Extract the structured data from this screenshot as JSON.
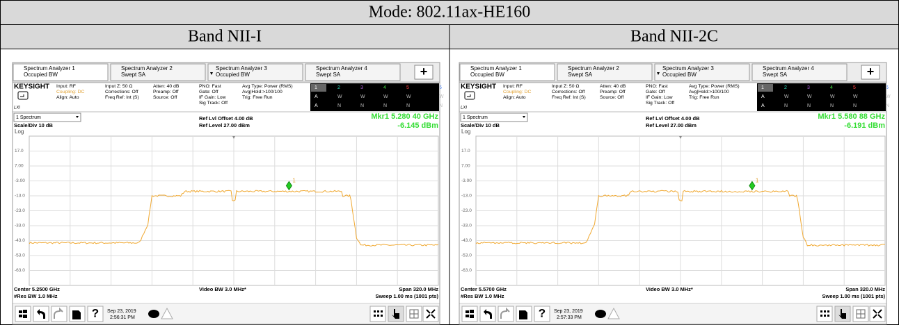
{
  "table": {
    "title": "Mode: 802.11ax-HE160",
    "headers": [
      "Band NII-I",
      "Band NII-2C"
    ],
    "panels": [
      {
        "tabs": [
          {
            "name": "Spectrum Analyzer 1",
            "mode": "Occupied BW"
          },
          {
            "name": "Spectrum Analyzer 2",
            "mode": "Swept SA"
          },
          {
            "name": "Spectrum Analyzer 3",
            "mode": "Occupied BW"
          },
          {
            "name": "Spectrum Analyzer 4",
            "mode": "Swept SA"
          }
        ],
        "plus": "+",
        "logo": "KEYSIGHT",
        "lxi": "LXI",
        "settings": [
          [
            "Input: RF",
            "Coupling: DC",
            "Align: Auto"
          ],
          [
            "Input Z: 50 Ω",
            "Corrections: Off",
            "Freq Ref: Int (S)"
          ],
          [
            "Atten: 40 dB",
            "Preamp: Off",
            "Source: Off"
          ],
          [
            "PNO: Fast",
            "Gate: Off",
            "IF Gain: Low",
            "Sig Track: Off"
          ],
          [
            "Avg Type: Power (RMS)",
            "Avg|Hold:>100/100",
            "Trig: Free Run"
          ]
        ],
        "trace_table": [
          [
            "1",
            "2",
            "3",
            "4",
            "5",
            "6"
          ],
          [
            "A",
            "W",
            "W",
            "W",
            "W",
            "W"
          ],
          [
            "A",
            "N",
            "N",
            "N",
            "N",
            "N"
          ]
        ],
        "view": "1 Spectrum",
        "scale": "Scale/Div 10 dB",
        "log": "Log",
        "ref_offset": "Ref Lvl Offset 4.00 dB",
        "ref_level": "Ref Level 27.00 dBm",
        "marker_freq": "Mkr1  5.280 40 GHz",
        "marker_level": "-6.145 dBm",
        "marker_label": "1",
        "y_labels": [
          "17.0",
          "7.00",
          "-3.00",
          "-13.0",
          "-23.0",
          "-33.0",
          "-43.0",
          "-53.0",
          "-63.0"
        ],
        "center": "Center 5.2500 GHz",
        "res_bw": "#Res BW 1.0 MHz",
        "video_bw": "Video BW 3.0 MHz*",
        "span": "Span 320.0 MHz",
        "sweep": "Sweep 1.00 ms (1001 pts)",
        "help": "?",
        "date": "Sep 23, 2019",
        "time": "2:56:31 PM"
      },
      {
        "tabs": [
          {
            "name": "Spectrum Analyzer 1",
            "mode": "Occupied BW"
          },
          {
            "name": "Spectrum Analyzer 2",
            "mode": "Swept SA"
          },
          {
            "name": "Spectrum Analyzer 3",
            "mode": "Occupied BW"
          },
          {
            "name": "Spectrum Analyzer 4",
            "mode": "Swept SA"
          }
        ],
        "plus": "+",
        "logo": "KEYSIGHT",
        "lxi": "LXI",
        "settings": [
          [
            "Input: RF",
            "Coupling: DC",
            "Align: Auto"
          ],
          [
            "Input Z: 50 Ω",
            "Corrections: Off",
            "Freq Ref: Int (S)"
          ],
          [
            "Atten: 40 dB",
            "Preamp: Off",
            "Source: Off"
          ],
          [
            "PNO: Fast",
            "Gate: Off",
            "IF Gain: Low",
            "Sig Track: Off"
          ],
          [
            "Avg Type: Power (RMS)",
            "Avg|Hold:>100/100",
            "Trig: Free Run"
          ]
        ],
        "trace_table": [
          [
            "1",
            "2",
            "3",
            "4",
            "5",
            "6"
          ],
          [
            "A",
            "W",
            "W",
            "W",
            "W",
            "W"
          ],
          [
            "A",
            "N",
            "N",
            "N",
            "N",
            "N"
          ]
        ],
        "view": "1 Spectrum",
        "scale": "Scale/Div 10 dB",
        "log": "Log",
        "ref_offset": "Ref Lvl Offset 4.00 dB",
        "ref_level": "Ref Level 27.00 dBm",
        "marker_freq": "Mkr1  5.580 88 GHz",
        "marker_level": "-6.191 dBm",
        "marker_label": "1",
        "y_labels": [
          "17.0",
          "7.00",
          "-3.00",
          "-13.0",
          "-23.0",
          "-33.0",
          "-43.0",
          "-53.0",
          "-63.0"
        ],
        "center": "Center 5.5700 GHz",
        "res_bw": "#Res BW 1.0 MHz",
        "video_bw": "Video BW 3.0 MHz*",
        "span": "Span 320.0 MHz",
        "sweep": "Sweep 1.00 ms (1001 pts)",
        "help": "?",
        "date": "Sep 23, 2019",
        "time": "2:57:33 PM"
      }
    ]
  }
}
